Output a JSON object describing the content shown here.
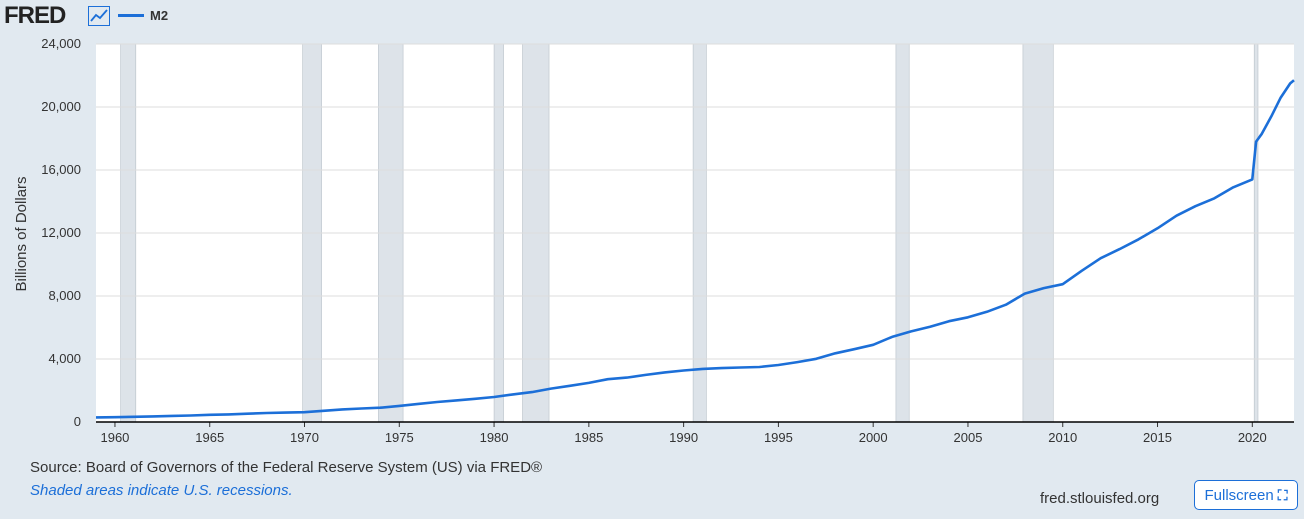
{
  "header": {
    "logo_text": "FRED",
    "logo_icon": "line-chart-icon",
    "series_label": "M2"
  },
  "colors": {
    "line": "#1c6fd8",
    "recession": "#dde3e9",
    "background": "#e1e9f0",
    "plot_bg": "#ffffff",
    "grid": "#dddddd"
  },
  "chart_data": {
    "type": "line",
    "title": "",
    "xlabel": "",
    "ylabel": "Billions of Dollars",
    "xlim": [
      1959,
      2022.2
    ],
    "ylim": [
      0,
      24000
    ],
    "x_ticks": [
      "1960",
      "1965",
      "1970",
      "1975",
      "1980",
      "1985",
      "1990",
      "1995",
      "2000",
      "2005",
      "2010",
      "2015",
      "2020"
    ],
    "y_ticks": [
      "0",
      "4,000",
      "8,000",
      "12,000",
      "16,000",
      "20,000",
      "24,000"
    ],
    "grid": true,
    "legend_position": "top-left",
    "recessions": [
      [
        1960.3,
        1961.1
      ],
      [
        1969.9,
        1970.9
      ],
      [
        1973.9,
        1975.2
      ],
      [
        1980.0,
        1980.5
      ],
      [
        1981.5,
        1982.9
      ],
      [
        1990.5,
        1991.2
      ],
      [
        2001.2,
        2001.9
      ],
      [
        2007.9,
        2009.5
      ],
      [
        2020.1,
        2020.3
      ]
    ],
    "series": [
      {
        "name": "M2",
        "x": [
          1959,
          1960,
          1961,
          1962,
          1963,
          1964,
          1965,
          1966,
          1967,
          1968,
          1969,
          1970,
          1971,
          1972,
          1973,
          1974,
          1975,
          1976,
          1977,
          1978,
          1979,
          1980,
          1981,
          1982,
          1983,
          1984,
          1985,
          1986,
          1987,
          1988,
          1989,
          1990,
          1991,
          1992,
          1993,
          1994,
          1995,
          1996,
          1997,
          1998,
          1999,
          2000,
          2001,
          2002,
          2003,
          2004,
          2005,
          2006,
          2007,
          2008,
          2009,
          2010,
          2011,
          2012,
          2013,
          2014,
          2015,
          2016,
          2017,
          2018,
          2019,
          2020.0,
          2020.2,
          2020.5,
          2021.0,
          2021.5,
          2022.0,
          2022.2
        ],
        "values": [
          290,
          305,
          330,
          355,
          385,
          415,
          455,
          480,
          525,
          570,
          600,
          625,
          710,
          800,
          860,
          910,
          1020,
          1150,
          1270,
          1370,
          1470,
          1590,
          1750,
          1900,
          2120,
          2300,
          2480,
          2720,
          2820,
          2990,
          3150,
          3270,
          3370,
          3420,
          3460,
          3490,
          3620,
          3800,
          4010,
          4360,
          4620,
          4900,
          5400,
          5750,
          6050,
          6400,
          6650,
          7000,
          7450,
          8150,
          8500,
          8750,
          9600,
          10400,
          10980,
          11600,
          12300,
          13100,
          13700,
          14200,
          14900,
          15400,
          17800,
          18300,
          19400,
          20600,
          21500,
          21700
        ]
      }
    ]
  },
  "footer": {
    "source": "Source: Board of Governors of the Federal Reserve System (US) via FRED®",
    "note": "Shaded areas indicate U.S. recessions.",
    "url": "fred.stlouisfed.org",
    "fullscreen_label": "Fullscreen",
    "fullscreen_icon": "expand-icon"
  }
}
